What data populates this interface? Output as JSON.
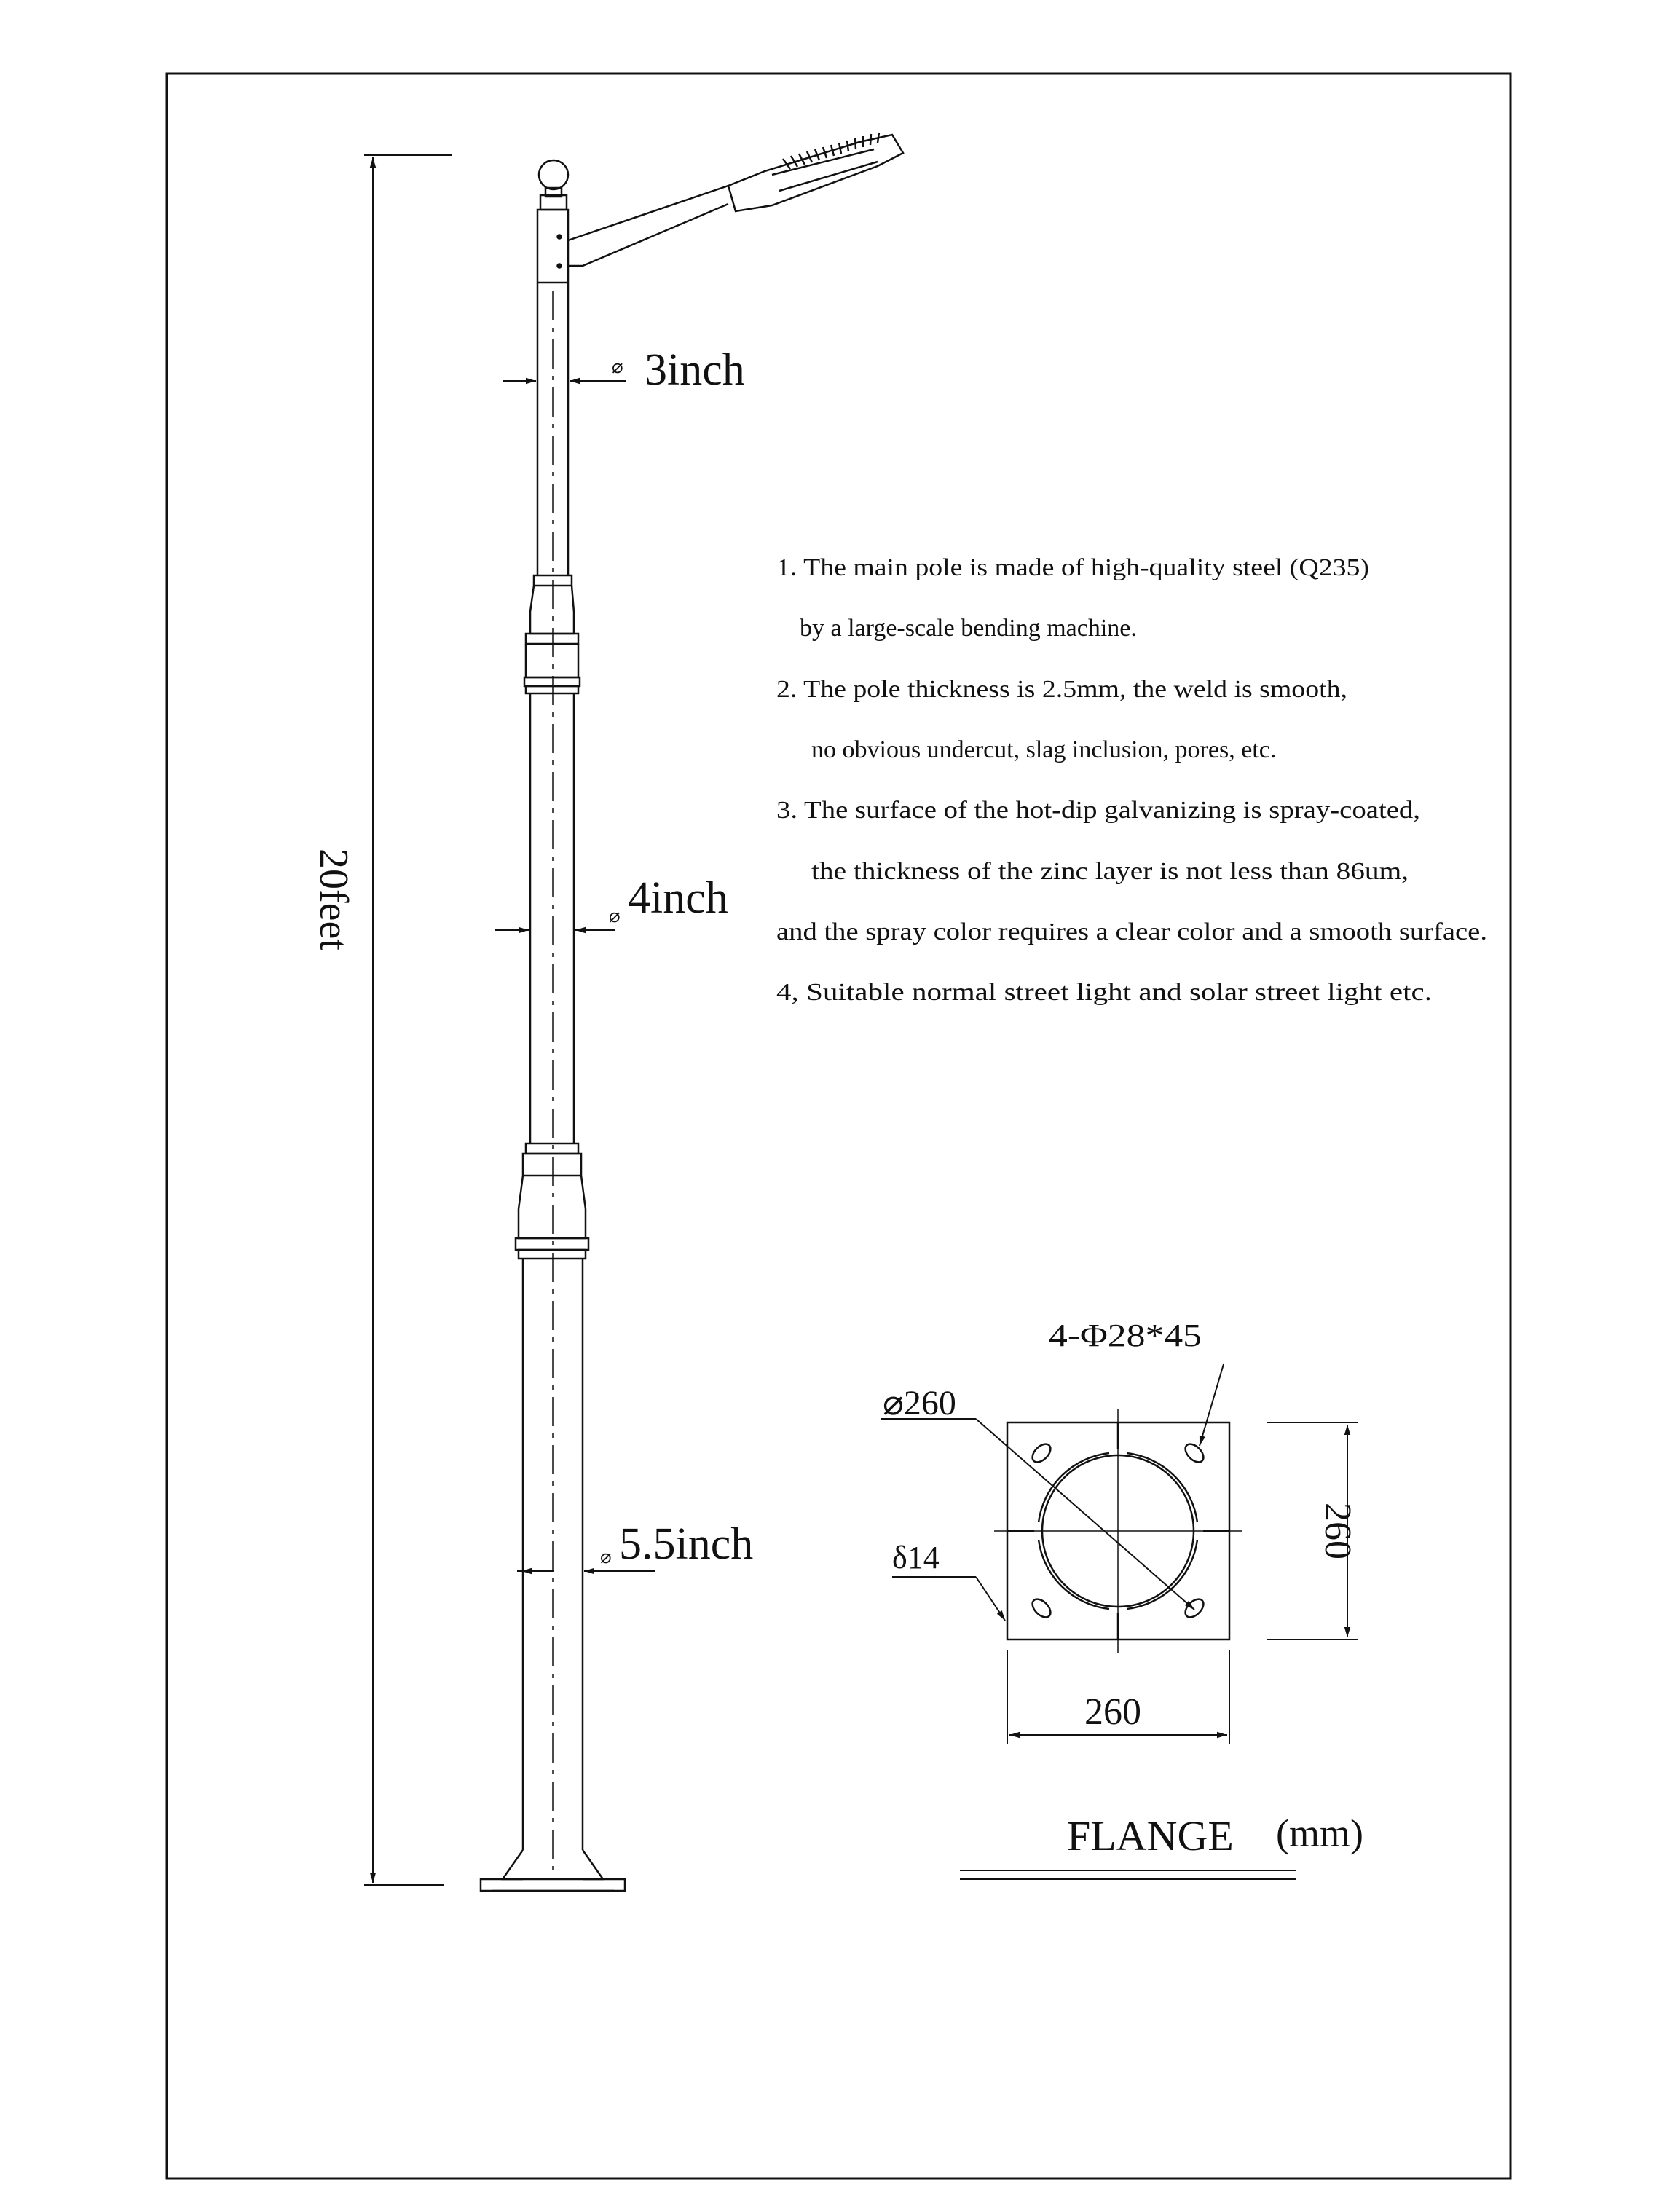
{
  "colors": {
    "ink": "#111111",
    "paper": "#ffffff"
  },
  "pole": {
    "height_label": "20feet",
    "top_diameter_label": "3inch",
    "mid_diameter_label": "4inch",
    "bottom_diameter_label": "5.5inch",
    "diameter_symbol": "⌀"
  },
  "notes": [
    "1. The main pole is made of high-quality steel (Q235)",
    "by a large-scale bending machine.",
    "2. The pole thickness is 2.5mm, the weld is smooth,",
    "no obvious undercut, slag inclusion, pores, etc.",
    "3. The surface of the hot-dip galvanizing is spray-coated,",
    "the thickness of the zinc layer is not less than 86um,",
    "and the spray color requires a clear color and a smooth surface.",
    "4, Suitable normal street light and solar street light etc."
  ],
  "flange": {
    "holes_label": "4-Φ28*45",
    "circle_diameter_label": "⌀260",
    "thickness_label": "δ14",
    "width_label": "260",
    "height_label": "260",
    "title": "FLANGE",
    "unit": "(mm)"
  }
}
